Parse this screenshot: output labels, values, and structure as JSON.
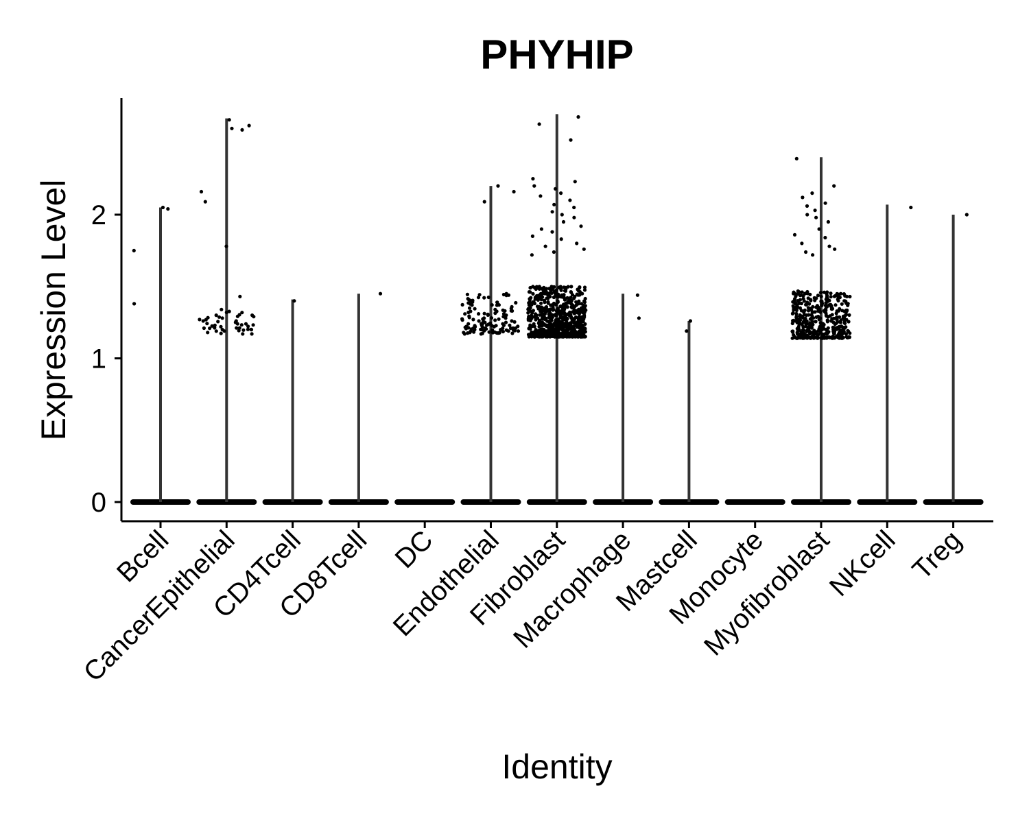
{
  "chart_data": {
    "type": "violin",
    "title": "PHYHIP",
    "xlabel": "Identity",
    "ylabel": "Expression Level",
    "ylim": [
      -0.13,
      2.83
    ],
    "yticks": [
      0,
      1,
      2
    ],
    "grid": false,
    "legend": "none",
    "categories": [
      "Bcell",
      "CancerEpithelial",
      "CD4Tcell",
      "CD8Tcell",
      "DC",
      "Endothelial",
      "Fibroblast",
      "Macrophage",
      "Mastcell",
      "Monocyte",
      "Myofibroblast",
      "NKcell",
      "Treg"
    ],
    "max_values": [
      2.05,
      2.67,
      1.41,
      1.45,
      0,
      2.2,
      2.7,
      1.45,
      1.26,
      0,
      2.4,
      2.07,
      2.0
    ],
    "points": [
      {
        "category": "Bcell",
        "values": [
          1.38,
          1.75,
          2.05,
          2.04
        ]
      },
      {
        "category": "CancerEpithelial",
        "values": [
          2.62,
          2.09,
          1.78,
          2.66,
          2.6,
          2.59,
          2.16,
          1.43,
          1.3,
          1.26,
          1.24,
          1.19,
          1.22,
          1.17,
          1.34,
          1.2,
          1.29,
          1.25,
          1.28,
          1.32,
          1.23,
          1.2,
          1.26,
          1.18,
          1.21,
          1.24,
          1.3,
          1.27
        ]
      },
      {
        "category": "CD4Tcell",
        "values": [
          1.4
        ]
      },
      {
        "category": "CD8Tcell",
        "values": [
          1.45
        ]
      },
      {
        "category": "DC",
        "values": []
      },
      {
        "category": "Endothelial",
        "values": [
          2.2,
          2.16,
          2.09,
          1.45,
          1.44,
          1.41,
          1.39,
          1.37,
          1.35,
          1.34,
          1.33,
          1.32,
          1.31,
          1.3,
          1.29,
          1.28,
          1.27,
          1.26,
          1.26,
          1.25,
          1.25,
          1.24,
          1.24,
          1.23,
          1.23,
          1.22,
          1.22,
          1.21,
          1.21,
          1.2,
          1.2,
          1.19,
          1.19,
          1.18,
          1.18,
          1.17
        ]
      },
      {
        "category": "Fibroblast",
        "values": [
          2.63,
          2.68,
          2.52,
          2.25,
          2.23,
          2.2,
          2.18,
          2.15,
          2.13,
          2.1,
          2.07,
          2.05,
          2.02,
          2.0,
          1.98,
          1.95,
          1.92,
          1.9,
          1.88,
          1.85,
          1.83,
          1.8,
          1.78,
          1.76,
          1.74,
          1.72,
          1.5,
          1.47,
          1.45,
          1.43,
          1.41,
          1.4,
          1.38,
          1.36,
          1.34
        ]
      },
      {
        "category": "Macrophage",
        "values": [
          1.44,
          1.28
        ]
      },
      {
        "category": "Mastcell",
        "values": [
          1.26,
          1.19
        ]
      },
      {
        "category": "Monocyte",
        "values": []
      },
      {
        "category": "Myofibroblast",
        "values": [
          2.39,
          2.2,
          2.15,
          2.12,
          2.08,
          2.06,
          2.03,
          2.0,
          1.98,
          1.95,
          1.9,
          1.86,
          1.84,
          1.8,
          1.78,
          1.76,
          1.74,
          1.72,
          1.46,
          1.45
        ]
      },
      {
        "category": "NKcell",
        "values": [
          2.05
        ]
      },
      {
        "category": "Treg",
        "values": [
          2.0
        ]
      }
    ],
    "dense_cluster": [
      {
        "category": "CancerEpithelial",
        "range": [
          1.17,
          1.34
        ],
        "count": 25
      },
      {
        "category": "Endothelial",
        "range": [
          1.17,
          1.45
        ],
        "count": 90
      },
      {
        "category": "Fibroblast",
        "range": [
          1.15,
          1.5
        ],
        "count": 700
      },
      {
        "category": "Myofibroblast",
        "range": [
          1.14,
          1.47
        ],
        "count": 420
      }
    ]
  }
}
